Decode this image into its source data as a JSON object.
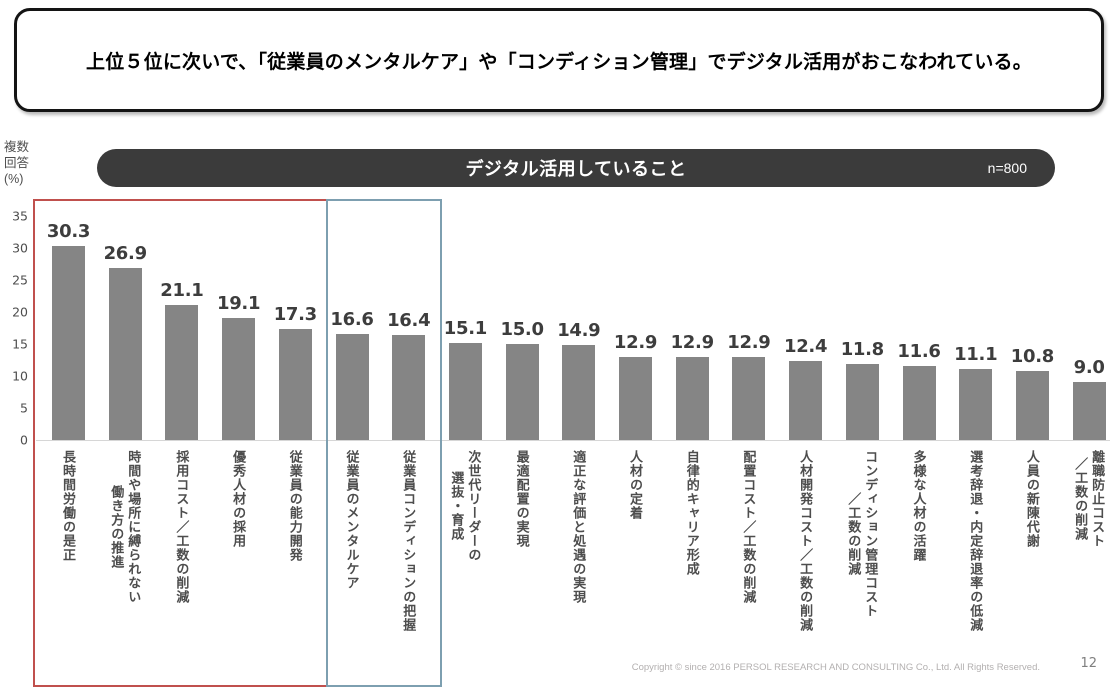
{
  "header": {
    "message": "上位５位に次いで、「従業員のメンタルケア」や「コンディション管理」でデジタル活用がおこなわれている。"
  },
  "chart_header": {
    "title": "デジタル活用していること",
    "sample_size": "n=800",
    "axis_unit": "複数\n回答\n(%)"
  },
  "chart_data": {
    "type": "bar",
    "title": "デジタル活用していること",
    "ylabel": "複数回答(%)",
    "ylim": [
      0,
      35
    ],
    "yticks": [
      0,
      5,
      10,
      15,
      20,
      25,
      30,
      35
    ],
    "grid": false,
    "legend": "none",
    "bar_color": "#858585",
    "value_label_color": "#3d3d3d",
    "categories": [
      [
        "長時間労働の是正"
      ],
      [
        "時間や場所に縛られない",
        "働き方の推進"
      ],
      [
        "採用コスト／工数の削減"
      ],
      [
        "優秀人材の採用"
      ],
      [
        "従業員の能力開発"
      ],
      [
        "従業員のメンタルケア"
      ],
      [
        "従業員コンディションの把握"
      ],
      [
        "次世代リーダーの",
        "選抜・育成"
      ],
      [
        "最適配置の実現"
      ],
      [
        "適正な評価と処遇の実現"
      ],
      [
        "人材の定着"
      ],
      [
        "自律的キャリア形成"
      ],
      [
        "配置コスト／工数の削減"
      ],
      [
        "人材開発コスト／工数の削減"
      ],
      [
        "コンディション管理コスト",
        "／工数の削減"
      ],
      [
        "多様な人材の活躍"
      ],
      [
        "選考辞退・内定辞退率の低減"
      ],
      [
        "人員の新陳代謝"
      ],
      [
        "離職防止コスト",
        "／工数の削減"
      ]
    ],
    "values": [
      30.3,
      26.9,
      21.1,
      19.1,
      17.3,
      16.6,
      16.4,
      15.1,
      15.0,
      14.9,
      12.9,
      12.9,
      12.9,
      12.4,
      11.8,
      11.6,
      11.1,
      10.8,
      9.0
    ],
    "highlights": [
      {
        "label": "top5-highlight",
        "color": "#c0504d",
        "from": 0,
        "to": 4
      },
      {
        "label": "mental-care-condition-highlight",
        "color": "#7d9fb0",
        "from": 5,
        "to": 6
      }
    ]
  },
  "footer": {
    "copyright": "Copyright © since 2016 PERSOL RESEARCH AND CONSULTING Co., Ltd. All Rights Reserved.",
    "page_number": "12"
  }
}
